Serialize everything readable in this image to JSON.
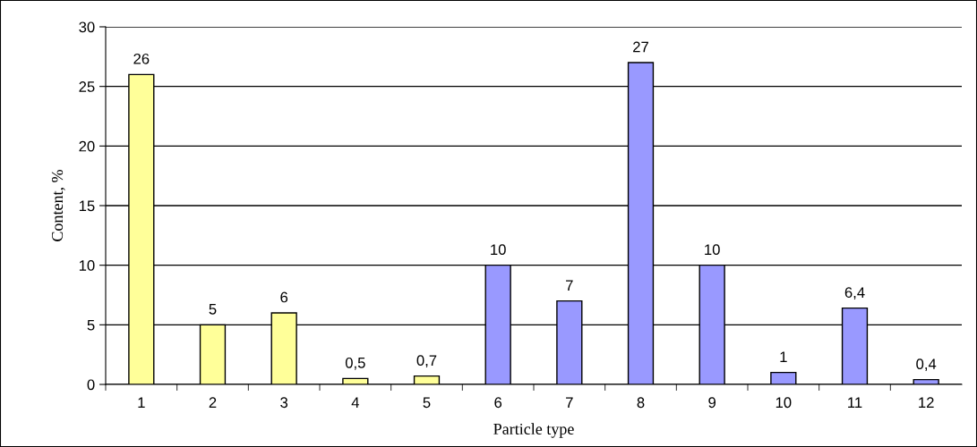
{
  "chart_data": {
    "type": "bar",
    "xlabel": "Particle type",
    "ylabel": "Content, %",
    "categories": [
      "1",
      "2",
      "3",
      "4",
      "5",
      "6",
      "7",
      "8",
      "9",
      "10",
      "11",
      "12"
    ],
    "values": [
      26,
      5,
      6,
      0.5,
      0.7,
      10,
      7,
      27,
      10,
      1,
      6.4,
      0.4
    ],
    "value_labels": [
      "26",
      "5",
      "6",
      "0,5",
      "0,7",
      "10",
      "7",
      "27",
      "10",
      "1",
      "6,4",
      "0,4"
    ],
    "colors": [
      "#ffff99",
      "#ffff99",
      "#ffff99",
      "#ffff99",
      "#ffff99",
      "#9999ff",
      "#9999ff",
      "#9999ff",
      "#9999ff",
      "#9999ff",
      "#9999ff",
      "#9999ff"
    ],
    "ylim": [
      0,
      30
    ],
    "yticks": [
      0,
      5,
      10,
      15,
      20,
      25,
      30
    ],
    "grid": "y",
    "legend": false
  }
}
